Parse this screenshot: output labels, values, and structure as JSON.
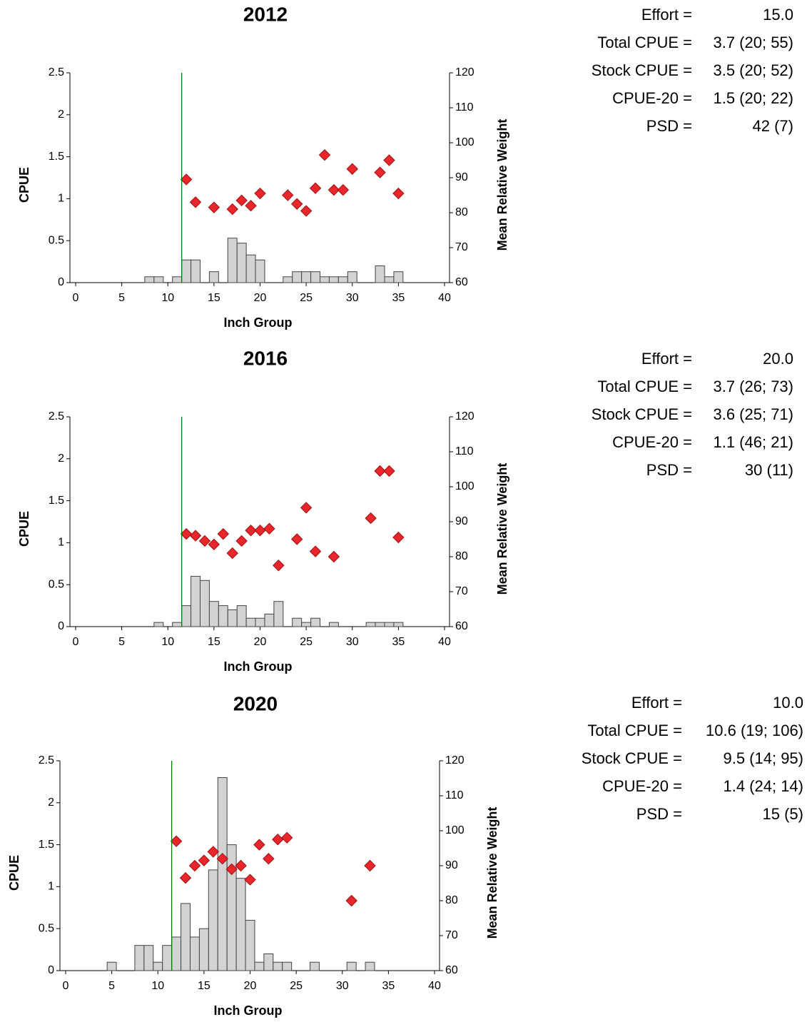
{
  "chart_data": [
    {
      "type": "bar",
      "title": "2012",
      "x_label": "Inch Group",
      "y_label": "CPUE",
      "y2_label": "Mean Relative Weight",
      "xlim": [
        0,
        40
      ],
      "xticks": [
        0,
        5,
        10,
        15,
        20,
        25,
        30,
        35,
        40
      ],
      "ylim": [
        0,
        2.5
      ],
      "yticks": [
        0,
        0.5,
        1,
        1.5,
        2,
        2.5
      ],
      "y2lim": [
        60,
        120
      ],
      "y2ticks": [
        60,
        70,
        80,
        90,
        100,
        110,
        120
      ],
      "reference_x": 11.5,
      "reference_color": "#008000",
      "series": [
        {
          "type": "bar",
          "color": "#d3d3d3",
          "x": [
            8,
            9,
            11,
            12,
            13,
            15,
            17,
            18,
            19,
            20,
            23,
            24,
            25,
            26,
            27,
            28,
            29,
            30,
            33,
            34,
            35
          ],
          "values": [
            0.07,
            0.07,
            0.07,
            0.27,
            0.27,
            0.13,
            0.53,
            0.47,
            0.33,
            0.27,
            0.07,
            0.13,
            0.13,
            0.13,
            0.07,
            0.07,
            0.07,
            0.13,
            0.2,
            0.07,
            0.13
          ]
        },
        {
          "type": "scatter",
          "axis": "y2",
          "color": "#e8262b",
          "x": [
            12,
            13,
            15,
            17,
            18,
            19,
            20,
            23,
            24,
            25,
            26,
            27,
            28,
            29,
            30,
            33,
            34,
            35
          ],
          "values": [
            89.5,
            83,
            81.5,
            81,
            83.5,
            82,
            85.5,
            85,
            82.5,
            80.5,
            87,
            96.5,
            86.5,
            86.5,
            92.5,
            91.5,
            95,
            85.5
          ]
        }
      ],
      "stats": [
        {
          "label": "Effort =",
          "value": "15.0"
        },
        {
          "label": "Total CPUE =",
          "value": "3.7 (20; 55)"
        },
        {
          "label": "Stock CPUE =",
          "value": "3.5 (20; 52)"
        },
        {
          "label": "CPUE-20 =",
          "value": "1.5 (20; 22)"
        },
        {
          "label": "PSD =",
          "value": "42 (7)"
        }
      ]
    },
    {
      "type": "bar",
      "title": "2016",
      "x_label": "Inch Group",
      "y_label": "CPUE",
      "y2_label": "Mean Relative Weight",
      "xlim": [
        0,
        40
      ],
      "xticks": [
        0,
        5,
        10,
        15,
        20,
        25,
        30,
        35,
        40
      ],
      "ylim": [
        0,
        2.5
      ],
      "yticks": [
        0,
        0.5,
        1,
        1.5,
        2,
        2.5
      ],
      "y2lim": [
        60,
        120
      ],
      "y2ticks": [
        60,
        70,
        80,
        90,
        100,
        110,
        120
      ],
      "reference_x": 11.5,
      "reference_color": "#008000",
      "series": [
        {
          "type": "bar",
          "color": "#d3d3d3",
          "x": [
            9,
            11,
            12,
            13,
            14,
            15,
            16,
            17,
            18,
            19,
            20,
            21,
            22,
            24,
            25,
            26,
            28,
            32,
            33,
            34,
            35
          ],
          "values": [
            0.05,
            0.05,
            0.25,
            0.6,
            0.55,
            0.3,
            0.25,
            0.2,
            0.25,
            0.1,
            0.1,
            0.15,
            0.3,
            0.1,
            0.05,
            0.1,
            0.05,
            0.05,
            0.05,
            0.05,
            0.05
          ]
        },
        {
          "type": "scatter",
          "axis": "y2",
          "color": "#e8262b",
          "x": [
            12,
            13,
            14,
            15,
            16,
            17,
            18,
            19,
            20,
            21,
            22,
            24,
            25,
            26,
            28,
            32,
            33,
            34,
            35
          ],
          "values": [
            86.5,
            86,
            84.5,
            83.5,
            86.5,
            81,
            84.5,
            87.5,
            87.5,
            88,
            77.5,
            85,
            94,
            81.5,
            80,
            91,
            104.5,
            104.5,
            85.5
          ]
        }
      ],
      "stats": [
        {
          "label": "Effort =",
          "value": "20.0"
        },
        {
          "label": "Total CPUE =",
          "value": "3.7 (26; 73)"
        },
        {
          "label": "Stock CPUE =",
          "value": "3.6 (25; 71)"
        },
        {
          "label": "CPUE-20 =",
          "value": "1.1 (46; 21)"
        },
        {
          "label": "PSD =",
          "value": "30 (11)"
        }
      ]
    },
    {
      "type": "bar",
      "title": "2020",
      "x_label": "Inch Group",
      "y_label": "CPUE",
      "y2_label": "Mean Relative Weight",
      "xlim": [
        0,
        40
      ],
      "xticks": [
        0,
        5,
        10,
        15,
        20,
        25,
        30,
        35,
        40
      ],
      "ylim": [
        0,
        2.5
      ],
      "yticks": [
        0,
        0.5,
        1,
        1.5,
        2,
        2.5
      ],
      "y2lim": [
        60,
        120
      ],
      "y2ticks": [
        60,
        70,
        80,
        90,
        100,
        110,
        120
      ],
      "reference_x": 11.5,
      "reference_color": "#008000",
      "series": [
        {
          "type": "bar",
          "color": "#d3d3d3",
          "x": [
            5,
            8,
            9,
            10,
            11,
            12,
            13,
            14,
            15,
            16,
            17,
            18,
            19,
            20,
            21,
            22,
            23,
            24,
            27,
            31,
            33
          ],
          "values": [
            0.1,
            0.3,
            0.3,
            0.1,
            0.3,
            0.4,
            0.8,
            0.4,
            0.5,
            1.2,
            2.3,
            1.5,
            1.1,
            0.6,
            0.1,
            0.2,
            0.1,
            0.1,
            0.1,
            0.1,
            0.1
          ]
        },
        {
          "type": "scatter",
          "axis": "y2",
          "color": "#e8262b",
          "x": [
            12,
            13,
            14,
            15,
            16,
            17,
            18,
            19,
            20,
            21,
            22,
            23,
            24,
            31,
            33
          ],
          "values": [
            97,
            86.5,
            90,
            91.5,
            94,
            92,
            89,
            90,
            86,
            96,
            92,
            97.5,
            98,
            80,
            90
          ]
        }
      ],
      "stats": [
        {
          "label": "Effort =",
          "value": "10.0"
        },
        {
          "label": "Total CPUE =",
          "value": "10.6 (19; 106)"
        },
        {
          "label": "Stock CPUE =",
          "value": "9.5 (14; 95)"
        },
        {
          "label": "CPUE-20 =",
          "value": "1.4 (24; 14)"
        },
        {
          "label": "PSD =",
          "value": "15 (5)"
        }
      ]
    }
  ]
}
